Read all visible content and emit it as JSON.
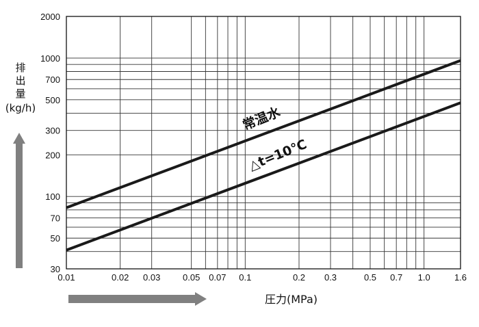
{
  "chart_data": {
    "type": "line",
    "title": "",
    "xlabel": "圧力(MPa)",
    "ylabel_lines": [
      "排",
      "出",
      "量",
      "(kg/h)"
    ],
    "x_scale": "log",
    "y_scale": "log",
    "xlim": [
      0.01,
      1.6
    ],
    "ylim": [
      30,
      2000
    ],
    "grid": true,
    "x_ticks": [
      0.01,
      0.02,
      0.03,
      0.05,
      0.06,
      0.07,
      0.08,
      0.09,
      0.1,
      0.2,
      0.3,
      0.4,
      0.5,
      0.6,
      0.7,
      0.8,
      0.9,
      1.0,
      1.6
    ],
    "x_tick_labels": [
      {
        "value": 0.01,
        "label": "0.01"
      },
      {
        "value": 0.02,
        "label": "0.02"
      },
      {
        "value": 0.03,
        "label": "0.03"
      },
      {
        "value": 0.05,
        "label": "0.05"
      },
      {
        "value": 0.07,
        "label": "0.07"
      },
      {
        "value": 0.1,
        "label": "0.1"
      },
      {
        "value": 0.2,
        "label": "0.2"
      },
      {
        "value": 0.3,
        "label": "0.3"
      },
      {
        "value": 0.5,
        "label": "0.5"
      },
      {
        "value": 0.7,
        "label": "0.7"
      },
      {
        "value": 1.0,
        "label": "1.0"
      },
      {
        "value": 1.6,
        "label": "1.6"
      }
    ],
    "y_ticks": [
      30,
      40,
      50,
      60,
      70,
      80,
      90,
      100,
      200,
      300,
      400,
      500,
      600,
      700,
      800,
      900,
      1000,
      2000
    ],
    "y_tick_labels": [
      {
        "value": 30,
        "label": "30"
      },
      {
        "value": 50,
        "label": "50"
      },
      {
        "value": 70,
        "label": "70"
      },
      {
        "value": 100,
        "label": "100"
      },
      {
        "value": 200,
        "label": "200"
      },
      {
        "value": 300,
        "label": "300"
      },
      {
        "value": 500,
        "label": "500"
      },
      {
        "value": 700,
        "label": "700"
      },
      {
        "value": 1000,
        "label": "1000"
      },
      {
        "value": 2000,
        "label": "2000"
      }
    ],
    "series": [
      {
        "name": "常温水",
        "x": [
          0.01,
          1.6
        ],
        "y": [
          83,
          960
        ]
      },
      {
        "name": "△t=10℃",
        "x": [
          0.01,
          1.6
        ],
        "y": [
          41,
          475
        ]
      }
    ],
    "line_color": "#1a1a1a",
    "grid_color": "#333333",
    "arrow_color": "#808080"
  }
}
